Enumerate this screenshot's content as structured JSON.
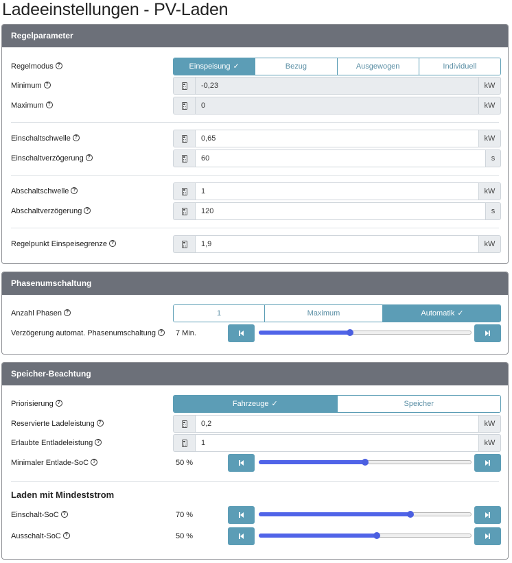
{
  "page_title": "Ladeeinstellungen - PV-Laden",
  "colors": {
    "accent": "#5c9db6",
    "header_bg": "#6c7079",
    "slider": "#5064e8"
  },
  "regel": {
    "header": "Regelparameter",
    "regelmodus": {
      "label": "Regelmodus",
      "options": [
        "Einspeisung",
        "Bezug",
        "Ausgewogen",
        "Individuell"
      ],
      "selected": "Einspeisung"
    },
    "minimum": {
      "label": "Minimum",
      "value": "-0,23",
      "unit": "kW"
    },
    "maximum": {
      "label": "Maximum",
      "value": "0",
      "unit": "kW"
    },
    "einschaltschwelle": {
      "label": "Einschaltschwelle",
      "value": "0,65",
      "unit": "kW"
    },
    "einschaltverzoegerung": {
      "label": "Einschaltverzögerung",
      "value": "60",
      "unit": "s"
    },
    "abschaltschwelle": {
      "label": "Abschaltschwelle",
      "value": "1",
      "unit": "kW"
    },
    "abschaltverzoegerung": {
      "label": "Abschaltverzögerung",
      "value": "120",
      "unit": "s"
    },
    "regelpunkt": {
      "label": "Regelpunkt Einspeisegrenze",
      "value": "1,9",
      "unit": "kW"
    }
  },
  "phasen": {
    "header": "Phasenumschaltung",
    "anzahl": {
      "label": "Anzahl Phasen",
      "options": [
        "1",
        "Maximum",
        "Automatik"
      ],
      "selected": "Automatik"
    },
    "verzoegerung": {
      "label": "Verzögerung automat. Phasenumschaltung",
      "value_text": "7 Min.",
      "fraction": 0.43
    }
  },
  "speicher": {
    "header": "Speicher-Beachtung",
    "priorisierung": {
      "label": "Priorisierung",
      "options": [
        "Fahrzeuge",
        "Speicher"
      ],
      "selected": "Fahrzeuge"
    },
    "reservierte": {
      "label": "Reservierte Ladeleistung",
      "value": "0,2",
      "unit": "kW"
    },
    "erlaubte": {
      "label": "Erlaubte Entladeleistung",
      "value": "1",
      "unit": "kW"
    },
    "min_entlade_soc": {
      "label": "Minimaler Entlade-SoC",
      "value_text": "50 %",
      "fraction": 0.5
    },
    "mindeststrom_heading": "Laden mit Mindeststrom",
    "einschalt_soc": {
      "label": "Einschalt-SoC",
      "value_text": "70 %",
      "fraction": 0.715
    },
    "ausschalt_soc": {
      "label": "Ausschalt-SoC",
      "value_text": "50 %",
      "fraction": 0.555
    }
  },
  "icons": {
    "help": "question-circle-icon",
    "input_prefix": "calculator-icon",
    "step_prev": "step-backward-icon",
    "step_next": "step-forward-icon",
    "check": "check-icon"
  }
}
